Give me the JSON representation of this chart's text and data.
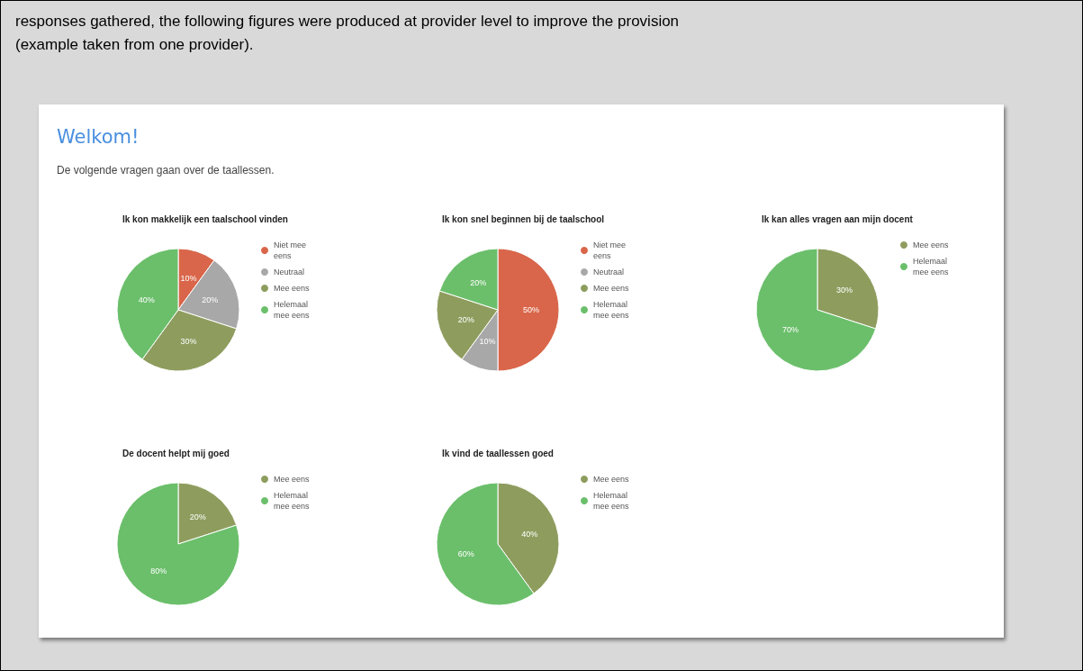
{
  "chart_data": [
    {
      "type": "other",
      "title": "Welkom!",
      "subtitle": "De volgende vragen gaan over de taallessen.",
      "annotations": [
        "responses gathered, the following figures were produced at provider level to improve the provision",
        "(example taken from one provider)."
      ]
    },
    {
      "type": "pie",
      "title": "Ik kon makkelijk een taalschool vinden",
      "categories": [
        "Niet mee eens",
        "Neutraal",
        "Mee eens",
        "Helemaal mee eens"
      ],
      "values": [
        10,
        20,
        30,
        40
      ],
      "value_labels": [
        "10%",
        "20%",
        "30%",
        "40%"
      ],
      "colors": [
        "#d9664a",
        "#a8a8a8",
        "#8e9d5e",
        "#6bbf6b"
      ],
      "legend": "right"
    },
    {
      "type": "pie",
      "title": "Ik kon snel beginnen bij de taalschool",
      "categories": [
        "Niet mee eens",
        "Neutraal",
        "Mee eens",
        "Helemaal mee eens"
      ],
      "values": [
        50,
        10,
        20,
        20
      ],
      "value_labels": [
        "50%",
        "10%",
        "20%",
        "20%"
      ],
      "colors": [
        "#d9664a",
        "#a8a8a8",
        "#8e9d5e",
        "#6bbf6b"
      ],
      "legend": "right"
    },
    {
      "type": "pie",
      "title": "Ik kan alles vragen aan mijn docent",
      "categories": [
        "Mee eens",
        "Helemaal mee eens"
      ],
      "values": [
        30,
        70
      ],
      "value_labels": [
        "30%",
        "70%"
      ],
      "colors": [
        "#8e9d5e",
        "#6bbf6b"
      ],
      "legend": "right"
    },
    {
      "type": "pie",
      "title": "De docent helpt mij goed",
      "categories": [
        "Mee eens",
        "Helemaal mee eens"
      ],
      "values": [
        20,
        80
      ],
      "value_labels": [
        "20%",
        "80%"
      ],
      "colors": [
        "#8e9d5e",
        "#6bbf6b"
      ],
      "legend": "right"
    },
    {
      "type": "pie",
      "title": "Ik vind de taallessen goed",
      "categories": [
        "Mee eens",
        "Helemaal mee eens"
      ],
      "values": [
        40,
        60
      ],
      "value_labels": [
        "40%",
        "60%"
      ],
      "colors": [
        "#8e9d5e",
        "#6bbf6b"
      ],
      "legend": "right"
    }
  ]
}
